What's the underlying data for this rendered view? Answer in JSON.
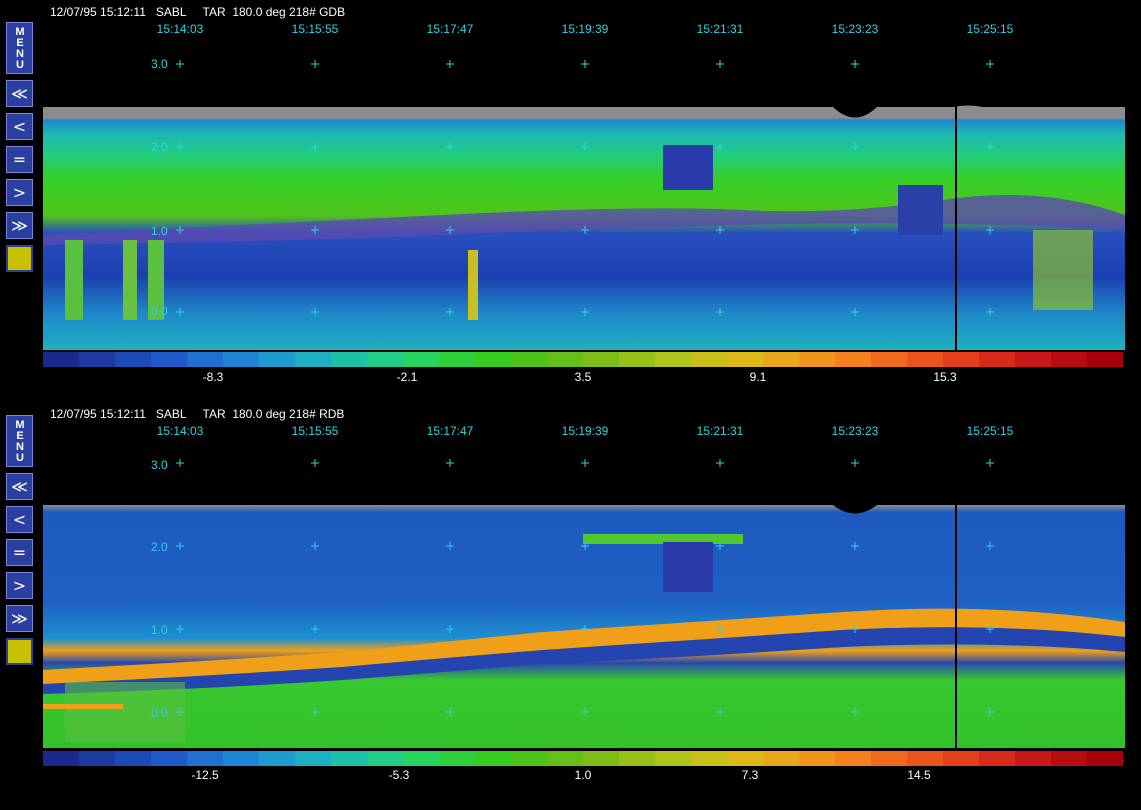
{
  "panels": [
    {
      "header": "12/07/95 15:12:11   SABL     TAR  180.0 deg 218# GDB",
      "times": [
        "15:14:03",
        "15:15:55",
        "15:17:47",
        "15:19:39",
        "15:21:31",
        "15:23:23",
        "15:25:15"
      ],
      "yticks": [
        "3.0",
        "2.0",
        "1.0",
        "0.0"
      ],
      "colorbar_labels": [
        "-8.3",
        "-2.1",
        "3.5",
        "9.1",
        "15.3"
      ],
      "sidebar": {
        "menu": "MENU",
        "first": "≪",
        "prev": "<",
        "equal": "=",
        "next": ">",
        "last": "≫"
      }
    },
    {
      "header": "12/07/95 15:12:11   SABL     TAR  180.0 deg 218# RDB",
      "times": [
        "15:14:03",
        "15:15:55",
        "15:17:47",
        "15:19:39",
        "15:21:31",
        "15:23:23",
        "15:25:15"
      ],
      "yticks": [
        "3.0",
        "2.0",
        "1.0",
        "0.0"
      ],
      "colorbar_labels": [
        "-12.5",
        "-5.3",
        "1.0",
        "7.3",
        "14.5"
      ],
      "sidebar": {
        "menu": "MENU",
        "first": "≪",
        "prev": "<",
        "equal": "=",
        "next": ">",
        "last": "≫"
      }
    }
  ],
  "colors": {
    "tick_text": "#2fd3e0",
    "colorbar": [
      "#1a2a8a",
      "#1c3aa0",
      "#1e4ab8",
      "#1f5ac8",
      "#1f70d0",
      "#1e86d4",
      "#1e9ccf",
      "#1eb0c0",
      "#1fc0a8",
      "#22cc88",
      "#28d460",
      "#2ed03a",
      "#36cc20",
      "#4ec41a",
      "#64c018",
      "#7cbc16",
      "#96c018",
      "#b0c41a",
      "#c8c018",
      "#dcb818",
      "#e8a81a",
      "#f0941c",
      "#f4801e",
      "#f06a1e",
      "#ec541e",
      "#e43e1c",
      "#d82a1a",
      "#c81818",
      "#b80c10",
      "#a80008"
    ]
  }
}
